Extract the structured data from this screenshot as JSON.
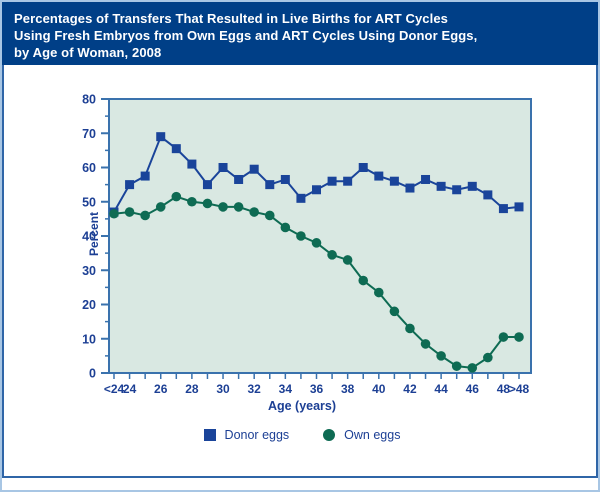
{
  "header": {
    "title_lines": [
      "Percentages of Transfers That Resulted in Live Births for ART Cycles",
      "Using Fresh Embryos from Own Eggs and ART Cycles Using Donor Eggs,",
      "by Age of Woman, 2008"
    ],
    "bg_color": "#003f87",
    "text_color": "#ffffff"
  },
  "chart_data": {
    "type": "line",
    "title": "Percentages of Transfers That Resulted in Live Births for ART Cycles Using Fresh Embryos from Own Eggs and ART Cycles Using Donor Eggs, by Age of Woman, 2008",
    "categories": [
      "<24",
      "24",
      "25",
      "26",
      "27",
      "28",
      "29",
      "30",
      "31",
      "32",
      "33",
      "34",
      "35",
      "36",
      "37",
      "38",
      "39",
      "40",
      "41",
      "42",
      "43",
      "44",
      "45",
      "46",
      "47",
      "48",
      ">48"
    ],
    "x_tick_labels": [
      "<24",
      "24",
      "",
      "26",
      "",
      "28",
      "",
      "30",
      "",
      "32",
      "",
      "34",
      "",
      "36",
      "",
      "38",
      "",
      "40",
      "",
      "42",
      "",
      "44",
      "",
      "46",
      "",
      "48",
      ">48"
    ],
    "series": [
      {
        "name": "Donor eggs",
        "marker": "square",
        "color": "#1a449a",
        "values": [
          47,
          55,
          57.5,
          69,
          65.5,
          61,
          55,
          60,
          56.5,
          59.5,
          55,
          56.5,
          51,
          53.5,
          56,
          56,
          60,
          57.5,
          56,
          54,
          56.5,
          54.5,
          53.5,
          54.5,
          52,
          48,
          48.5
        ]
      },
      {
        "name": "Own eggs",
        "marker": "circle",
        "color": "#0e6b53",
        "values": [
          46.5,
          47,
          46,
          48.5,
          51.5,
          50,
          49.5,
          48.5,
          48.5,
          47,
          46,
          42.5,
          40,
          38,
          34.5,
          33,
          27,
          23.5,
          18,
          13,
          8.5,
          5,
          2,
          1.5,
          4.5,
          10.5,
          10.5
        ]
      }
    ],
    "xlabel": "Age (years)",
    "ylabel": "Percent",
    "ylim": [
      0,
      80
    ],
    "y_major_ticks": [
      0,
      10,
      20,
      30,
      40,
      50,
      60,
      70,
      80
    ],
    "y_minor_step": 5,
    "grid": false,
    "legend_position": "bottom-center",
    "plot_bg": "#d9e8e2",
    "axis_color": "#3a72ad",
    "tick_label_color": "#1c3f94"
  }
}
